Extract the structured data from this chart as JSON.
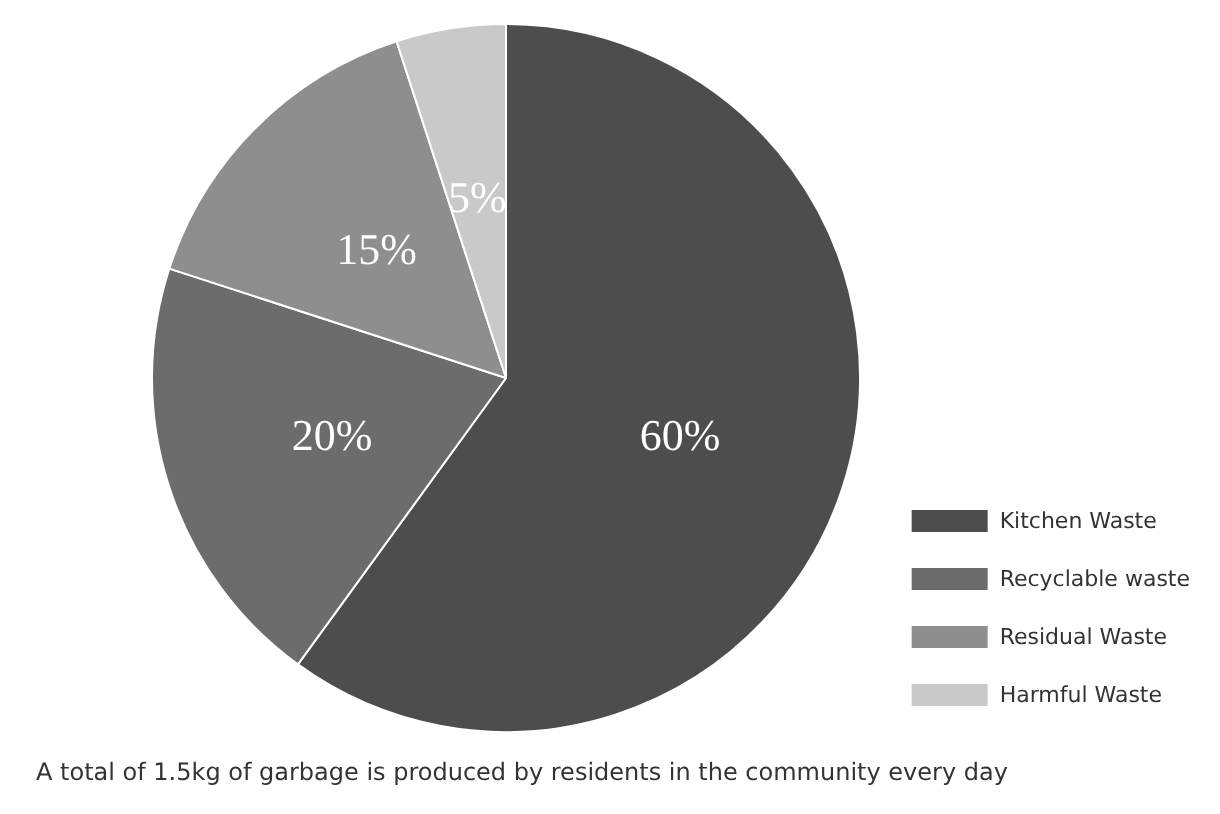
{
  "chart_data": {
    "type": "pie",
    "categories": [
      "Kitchen Waste",
      "Recyclable waste",
      "Residual Waste",
      "Harmful Waste"
    ],
    "values": [
      60,
      20,
      15,
      5
    ],
    "colors": [
      "#4d4d4d",
      "#6c6c6c",
      "#8e8e8e",
      "#c9c9c9"
    ],
    "value_labels": [
      "60%",
      "20%",
      "15%",
      "5%"
    ],
    "legend": "right",
    "annotations": [
      "A total of 1.5kg of garbage is produced by residents in the community every day"
    ]
  }
}
